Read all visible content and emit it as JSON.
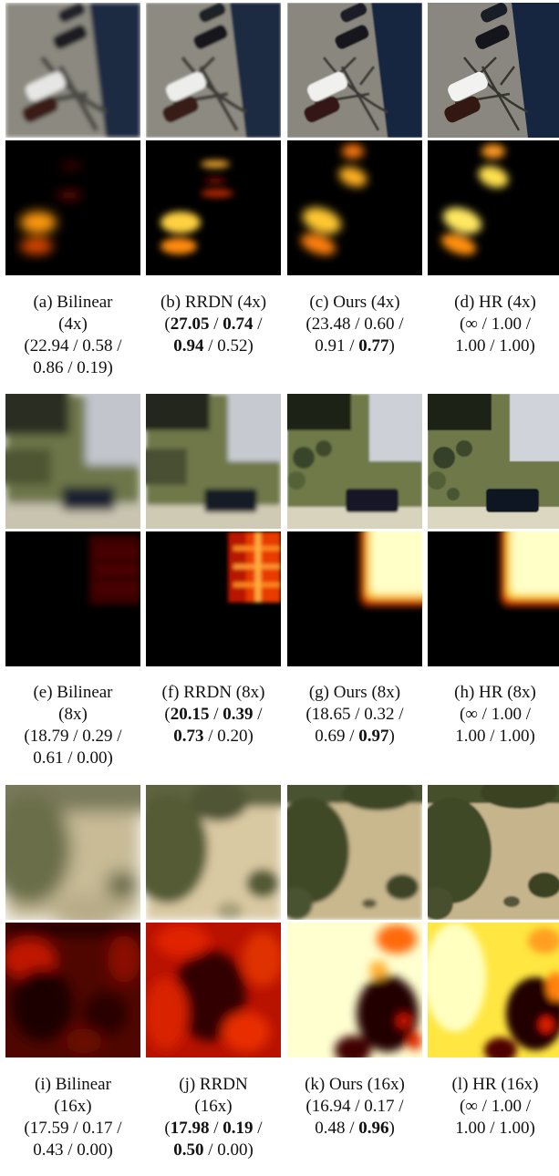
{
  "figure": {
    "blocks": [
      {
        "captions": [
          {
            "label": "(a) Bilinear",
            "scale": "(4x)",
            "m": [
              {
                "v": "22.94",
                "b": false
              },
              {
                "v": "0.58",
                "b": false
              },
              {
                "v": "0.86",
                "b": false
              },
              {
                "v": "0.19",
                "b": false
              }
            ]
          },
          {
            "label": "(b) RRDN (4x)",
            "scale": "",
            "m": [
              {
                "v": "27.05",
                "b": true
              },
              {
                "v": "0.74",
                "b": true
              },
              {
                "v": "0.94",
                "b": true
              },
              {
                "v": "0.52",
                "b": false
              }
            ]
          },
          {
            "label": "(c) Ours (4x)",
            "scale": "",
            "m": [
              {
                "v": "23.48",
                "b": false
              },
              {
                "v": "0.60",
                "b": false
              },
              {
                "v": "0.91",
                "b": false
              },
              {
                "v": "0.77",
                "b": true
              }
            ]
          },
          {
            "label": "(d) HR (4x)",
            "scale": "",
            "m": [
              {
                "v": "∞",
                "b": false
              },
              {
                "v": "1.00",
                "b": false
              },
              {
                "v": "1.00",
                "b": false
              },
              {
                "v": "1.00",
                "b": false
              }
            ]
          }
        ]
      },
      {
        "captions": [
          {
            "label": "(e) Bilinear",
            "scale": "(8x)",
            "m": [
              {
                "v": "18.79",
                "b": false
              },
              {
                "v": "0.29",
                "b": false
              },
              {
                "v": "0.61",
                "b": false
              },
              {
                "v": "0.00",
                "b": false
              }
            ]
          },
          {
            "label": "(f) RRDN (8x)",
            "scale": "",
            "m": [
              {
                "v": "20.15",
                "b": true
              },
              {
                "v": "0.39",
                "b": true
              },
              {
                "v": "0.73",
                "b": true
              },
              {
                "v": "0.20",
                "b": false
              }
            ]
          },
          {
            "label": "(g) Ours (8x)",
            "scale": "",
            "m": [
              {
                "v": "18.65",
                "b": false
              },
              {
                "v": "0.32",
                "b": false
              },
              {
                "v": "0.69",
                "b": false
              },
              {
                "v": "0.97",
                "b": true
              }
            ]
          },
          {
            "label": "(h) HR (8x)",
            "scale": "",
            "m": [
              {
                "v": "∞",
                "b": false
              },
              {
                "v": "1.00",
                "b": false
              },
              {
                "v": "1.00",
                "b": false
              },
              {
                "v": "1.00",
                "b": false
              }
            ]
          }
        ]
      },
      {
        "captions": [
          {
            "label": "(i) Bilinear",
            "scale": "(16x)",
            "m": [
              {
                "v": "17.59",
                "b": false
              },
              {
                "v": "0.17",
                "b": false
              },
              {
                "v": "0.43",
                "b": false
              },
              {
                "v": "0.00",
                "b": false
              }
            ]
          },
          {
            "label": "(j) RRDN",
            "scale": "(16x)",
            "m": [
              {
                "v": "17.98",
                "b": true
              },
              {
                "v": "0.19",
                "b": true
              },
              {
                "v": "0.50",
                "b": true
              },
              {
                "v": "0.00",
                "b": false
              }
            ]
          },
          {
            "label": "(k) Ours (16x)",
            "scale": "",
            "m": [
              {
                "v": "16.94",
                "b": false
              },
              {
                "v": "0.17",
                "b": false
              },
              {
                "v": "0.48",
                "b": false
              },
              {
                "v": "0.96",
                "b": true
              }
            ]
          },
          {
            "label": "(l) HR (16x)",
            "scale": "",
            "m": [
              {
                "v": "∞",
                "b": false
              },
              {
                "v": "1.00",
                "b": false
              },
              {
                "v": "1.00",
                "b": false
              },
              {
                "v": "1.00",
                "b": false
              }
            ]
          }
        ]
      }
    ],
    "colors": {
      "heat_low": "#000000",
      "heat_mid": "#c81400",
      "heat_high": "#ffffc8"
    }
  }
}
